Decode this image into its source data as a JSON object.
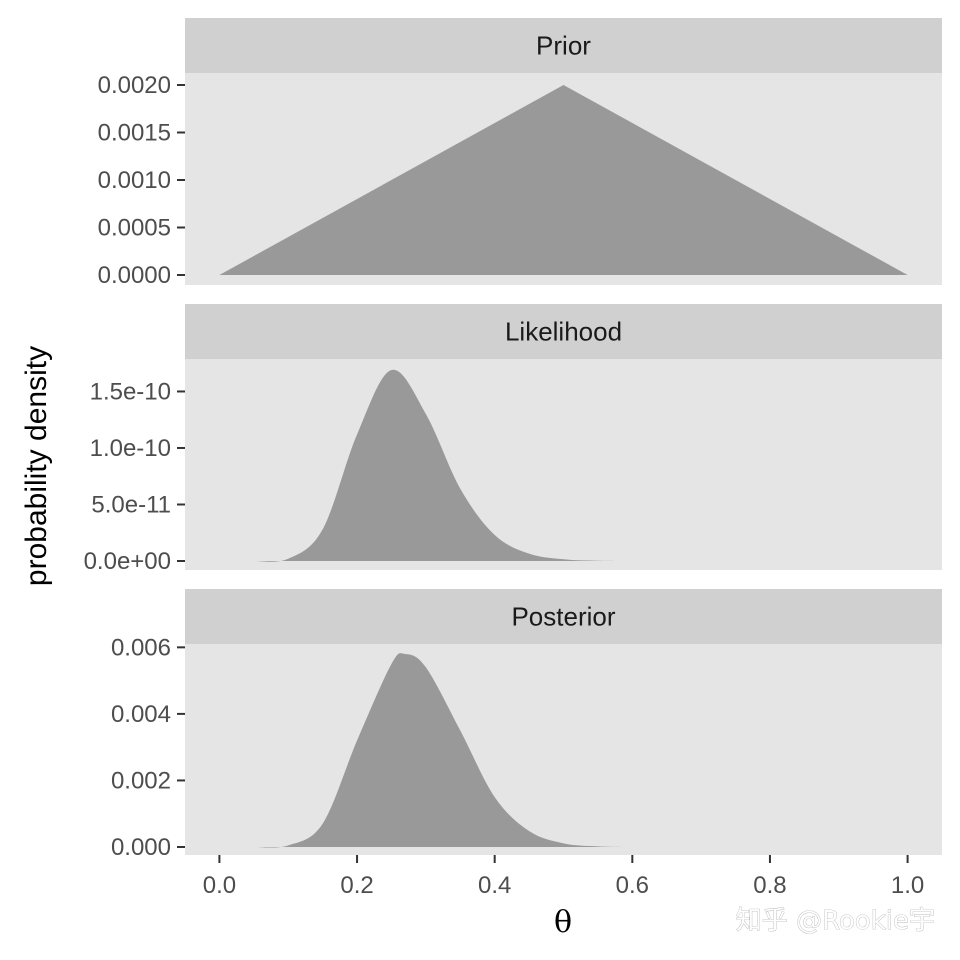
{
  "chart_data": {
    "type": "area",
    "facets": [
      {
        "title": "Prior",
        "ylim": [
          0,
          0.0021
        ],
        "yticks": [
          0,
          0.0005,
          0.001,
          0.0015,
          0.002
        ],
        "yticklabels": [
          "0.0000",
          "0.0005",
          "0.0010",
          "0.0015",
          "0.0020"
        ],
        "x": [
          0,
          0.5,
          1
        ],
        "y": [
          0,
          0.002,
          0
        ]
      },
      {
        "title": "Likelihood",
        "ylim": [
          0,
          1.7e-10
        ],
        "yticks": [
          0,
          5e-11,
          1e-10,
          1.5e-10
        ],
        "yticklabels": [
          "0.0e+00",
          "5.0e-11",
          "1.0e-10",
          "1.5e-10"
        ],
        "x": [
          0.05,
          0.1,
          0.15,
          0.2,
          0.25,
          0.3,
          0.35,
          0.4,
          0.45,
          0.5,
          0.55,
          0.6
        ],
        "y": [
          0.0,
          2e-12,
          2.8e-11,
          1.12e-10,
          1.69e-10,
          1.3e-10,
          6.4e-11,
          2.3e-11,
          6.5e-12,
          1.5e-12,
          2e-13,
          0.0
        ]
      },
      {
        "title": "Posterior",
        "ylim": [
          0,
          0.0061
        ],
        "yticks": [
          0,
          0.002,
          0.004,
          0.006
        ],
        "yticklabels": [
          "0.000",
          "0.002",
          "0.004",
          "0.006"
        ],
        "x": [
          0.05,
          0.1,
          0.15,
          0.2,
          0.25,
          0.27,
          0.3,
          0.35,
          0.4,
          0.45,
          0.5,
          0.55,
          0.6
        ],
        "y": [
          0.0,
          5e-05,
          0.0007,
          0.0032,
          0.0055,
          0.0058,
          0.0054,
          0.0035,
          0.0015,
          0.00048,
          0.00011,
          2e-05,
          0.0
        ]
      }
    ],
    "xlim": [
      -0.05,
      1.05
    ],
    "xticks": [
      0,
      0.2,
      0.4,
      0.6,
      0.8,
      1
    ],
    "xticklabels": [
      "0.0",
      "0.2",
      "0.4",
      "0.6",
      "0.8",
      "1.0"
    ],
    "xlabel": "θ",
    "ylabel": "probability density",
    "colors": {
      "panel_background": "#e5e5e5",
      "strip_background": "#d0d0d0",
      "fill": "#999999"
    }
  },
  "watermark": "知乎 @Rookie宇"
}
